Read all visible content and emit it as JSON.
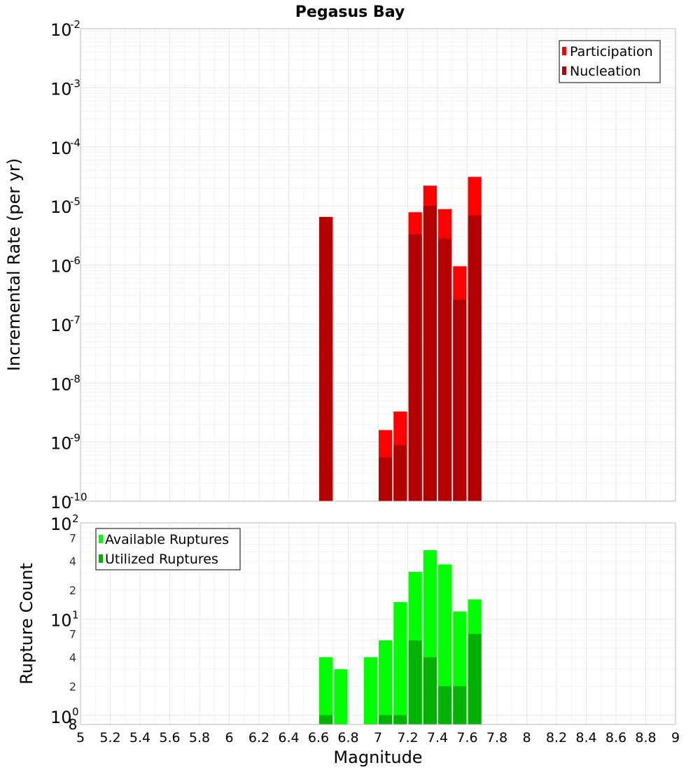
{
  "chart_data": [
    {
      "type": "bar",
      "title": "Pegasus Bay",
      "xlabel": "Magnitude",
      "ylabel": "Incremental Rate (per yr)",
      "yscale": "log",
      "ylim": [
        1e-10,
        0.01
      ],
      "xlim": [
        5,
        9
      ],
      "bar_width": 0.1,
      "y_tick_exponents": [
        "-2",
        "-3",
        "-4",
        "-5",
        "-6",
        "-7",
        "-8",
        "-9",
        "-10"
      ],
      "grid": true,
      "legend_position": "top-right",
      "series": [
        {
          "name": "Participation",
          "color": "#ff0000",
          "x": [
            6.65,
            7.05,
            7.15,
            7.25,
            7.35,
            7.45,
            7.55,
            7.65
          ],
          "values": [
            6.5e-06,
            1.6e-09,
            3.3e-09,
            7.8e-06,
            2.2e-05,
            8.8e-06,
            9.5e-07,
            3.1e-05
          ]
        },
        {
          "name": "Nucleation",
          "color": "#b30000",
          "x": [
            6.65,
            7.05,
            7.15,
            7.25,
            7.35,
            7.45,
            7.55,
            7.65
          ],
          "values": [
            6.5e-06,
            5.5e-10,
            8.9e-10,
            3.3e-06,
            1e-05,
            2.8e-06,
            2.6e-07,
            6.9e-06
          ]
        }
      ]
    },
    {
      "type": "bar",
      "xlabel": "Magnitude",
      "ylabel": "Rupture Count",
      "yscale": "log",
      "ylim": [
        0.8,
        100
      ],
      "xlim": [
        5,
        9
      ],
      "bar_width": 0.1,
      "grid": true,
      "legend_position": "top-left",
      "x_ticks": [
        "5",
        "5.2",
        "5.4",
        "5.6",
        "5.8",
        "6",
        "6.2",
        "6.4",
        "6.6",
        "6.8",
        "7",
        "7.2",
        "7.4",
        "7.6",
        "7.8",
        "8",
        "8.2",
        "8.4",
        "8.6",
        "8.8",
        "9"
      ],
      "y_minor_labels": [
        "7",
        "4",
        "2",
        "7",
        "4",
        "2",
        "8"
      ],
      "y_minor_values": [
        70,
        40,
        20,
        7,
        4,
        2,
        0.8
      ],
      "y_major_exponents": [
        "2",
        "1",
        "0"
      ],
      "series": [
        {
          "name": "Available Ruptures",
          "color": "#00ff00",
          "x": [
            6.65,
            6.75,
            6.95,
            7.05,
            7.15,
            7.25,
            7.35,
            7.45,
            7.55,
            7.65
          ],
          "values": [
            4,
            3,
            4,
            6,
            15,
            31,
            52,
            37,
            12,
            16
          ]
        },
        {
          "name": "Utilized Ruptures",
          "color": "#00b300",
          "x": [
            6.65,
            7.05,
            7.15,
            7.25,
            7.35,
            7.45,
            7.55,
            7.65
          ],
          "values": [
            1,
            1,
            1,
            6,
            4,
            2,
            2,
            7
          ]
        }
      ]
    }
  ]
}
